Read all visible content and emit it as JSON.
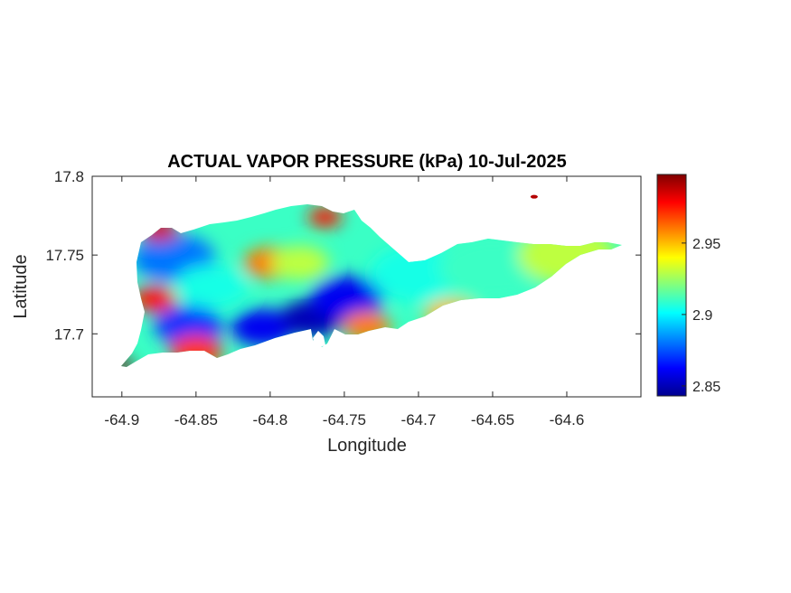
{
  "chart_data": {
    "type": "heatmap",
    "title": "ACTUAL VAPOR PRESSURE (kPa) 10-Jul-2025",
    "xlabel": "Longitude",
    "ylabel": "Latitude",
    "xlim": [
      -64.92,
      -64.55
    ],
    "ylim": [
      17.66,
      17.8
    ],
    "x_ticks": [
      -64.9,
      -64.85,
      -64.8,
      -64.75,
      -64.7,
      -64.65,
      -64.6
    ],
    "x_tick_labels": [
      "-64.9",
      "-64.85",
      "-64.8",
      "-64.75",
      "-64.7",
      "-64.65",
      "-64.6"
    ],
    "y_ticks": [
      17.7,
      17.75,
      17.8
    ],
    "y_tick_labels": [
      "17.7",
      "17.75",
      "17.8"
    ],
    "colorbar": {
      "colormap": "jet",
      "range": [
        2.843,
        2.998
      ],
      "ticks": [
        2.85,
        2.9,
        2.95
      ],
      "tick_labels": [
        "2.85",
        "2.9",
        "2.95"
      ]
    },
    "grid": false,
    "features": [
      {
        "lon": -64.865,
        "lat": 17.748,
        "value": 2.88
      },
      {
        "lon": -64.84,
        "lat": 17.73,
        "value": 2.905
      },
      {
        "lon": -64.8,
        "lat": 17.745,
        "value": 2.96
      },
      {
        "lon": -64.878,
        "lat": 17.722,
        "value": 2.975
      },
      {
        "lon": -64.855,
        "lat": 17.705,
        "value": 2.87
      },
      {
        "lon": -64.805,
        "lat": 17.704,
        "value": 2.86
      },
      {
        "lon": -64.772,
        "lat": 17.71,
        "value": 2.85
      },
      {
        "lon": -64.748,
        "lat": 17.723,
        "value": 2.86
      },
      {
        "lon": -64.78,
        "lat": 17.745,
        "value": 2.93
      },
      {
        "lon": -64.7,
        "lat": 17.738,
        "value": 2.905
      },
      {
        "lon": -64.65,
        "lat": 17.742,
        "value": 2.91
      },
      {
        "lon": -64.6,
        "lat": 17.75,
        "value": 2.93
      },
      {
        "lon": -64.875,
        "lat": 17.766,
        "value": 2.985
      },
      {
        "lon": -64.763,
        "lat": 17.774,
        "value": 2.975
      },
      {
        "lon": -64.9,
        "lat": 17.68,
        "value": 2.998
      },
      {
        "lon": -64.85,
        "lat": 17.689,
        "value": 2.97
      },
      {
        "lon": -64.735,
        "lat": 17.705,
        "value": 2.96
      },
      {
        "lon": -64.678,
        "lat": 17.712,
        "value": 2.95
      },
      {
        "lon": -64.622,
        "lat": 17.787,
        "value": 2.99
      }
    ]
  }
}
